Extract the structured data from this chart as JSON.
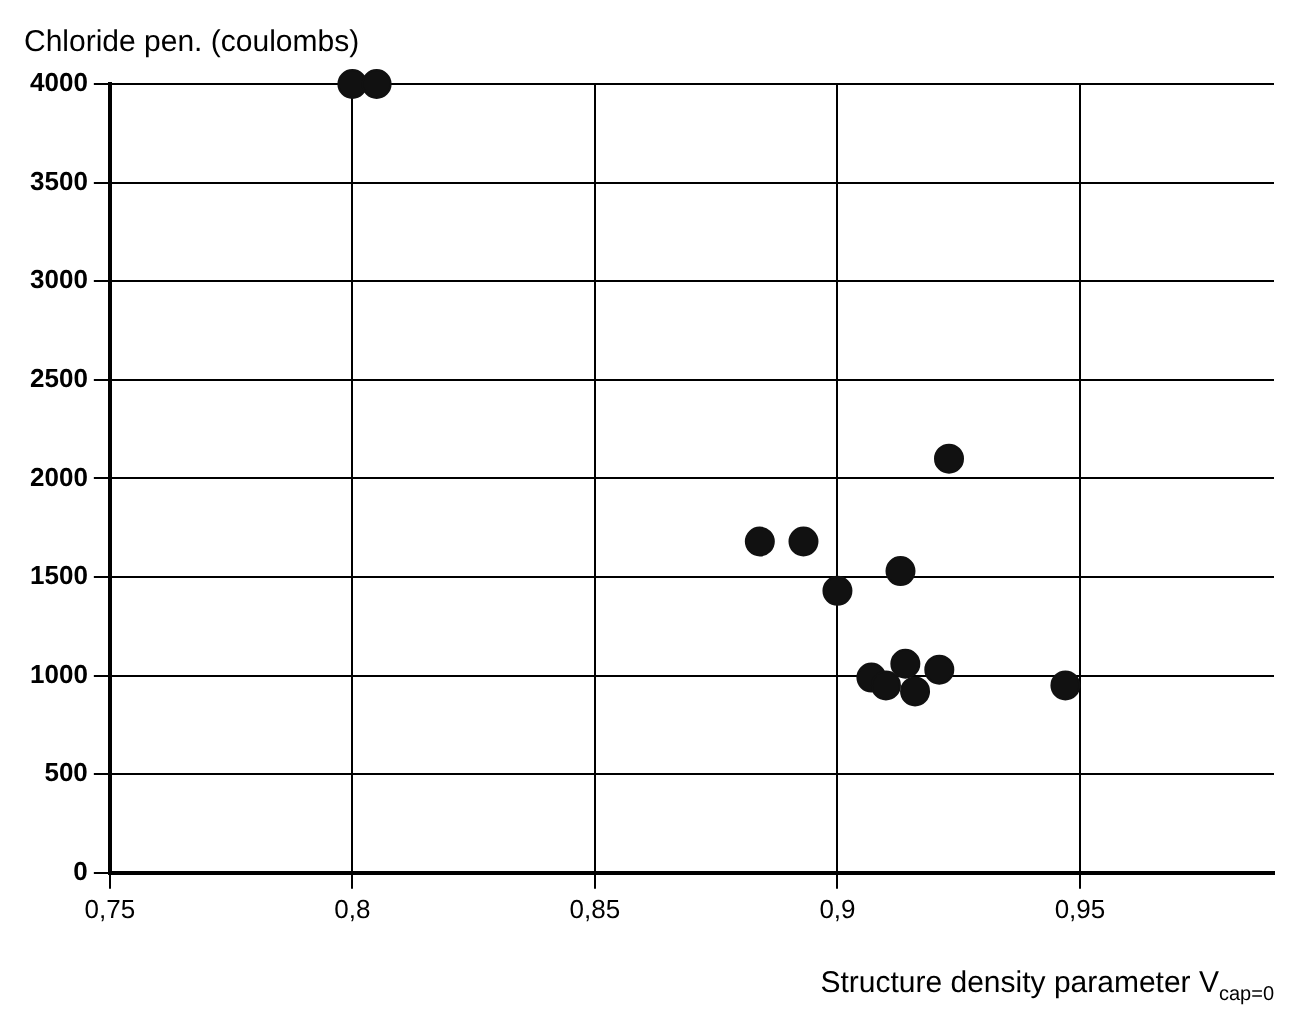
{
  "chart_data": {
    "type": "scatter",
    "ylabel": "Chloride pen. (coulombs)",
    "xlabel": "Structure density parameter V$_{cap=0}$",
    "x": [
      0.8,
      0.805,
      0.884,
      0.893,
      0.9,
      0.913,
      0.923,
      0.907,
      0.91,
      0.914,
      0.916,
      0.921,
      0.947
    ],
    "series": [
      {
        "color": "#111111",
        "values": [
          4000,
          4000,
          1680,
          1680,
          1430,
          1530,
          2100,
          990,
          950,
          1060,
          920,
          1030,
          950
        ]
      }
    ],
    "xlim": [
      0.75,
      0.99
    ],
    "xticks": [
      {
        "value": 0.75,
        "label": "0,75"
      },
      {
        "value": 0.8,
        "label": "0,8"
      },
      {
        "value": 0.85,
        "label": "0,85"
      },
      {
        "value": 0.9,
        "label": "0,9"
      },
      {
        "value": 0.95,
        "label": "0,95"
      }
    ],
    "ylim": [
      0,
      4000
    ],
    "yticks": [
      0,
      500,
      1000,
      1500,
      2000,
      2500,
      3000,
      3500,
      4000
    ],
    "grid": true,
    "legend": false,
    "marker": "circle"
  }
}
